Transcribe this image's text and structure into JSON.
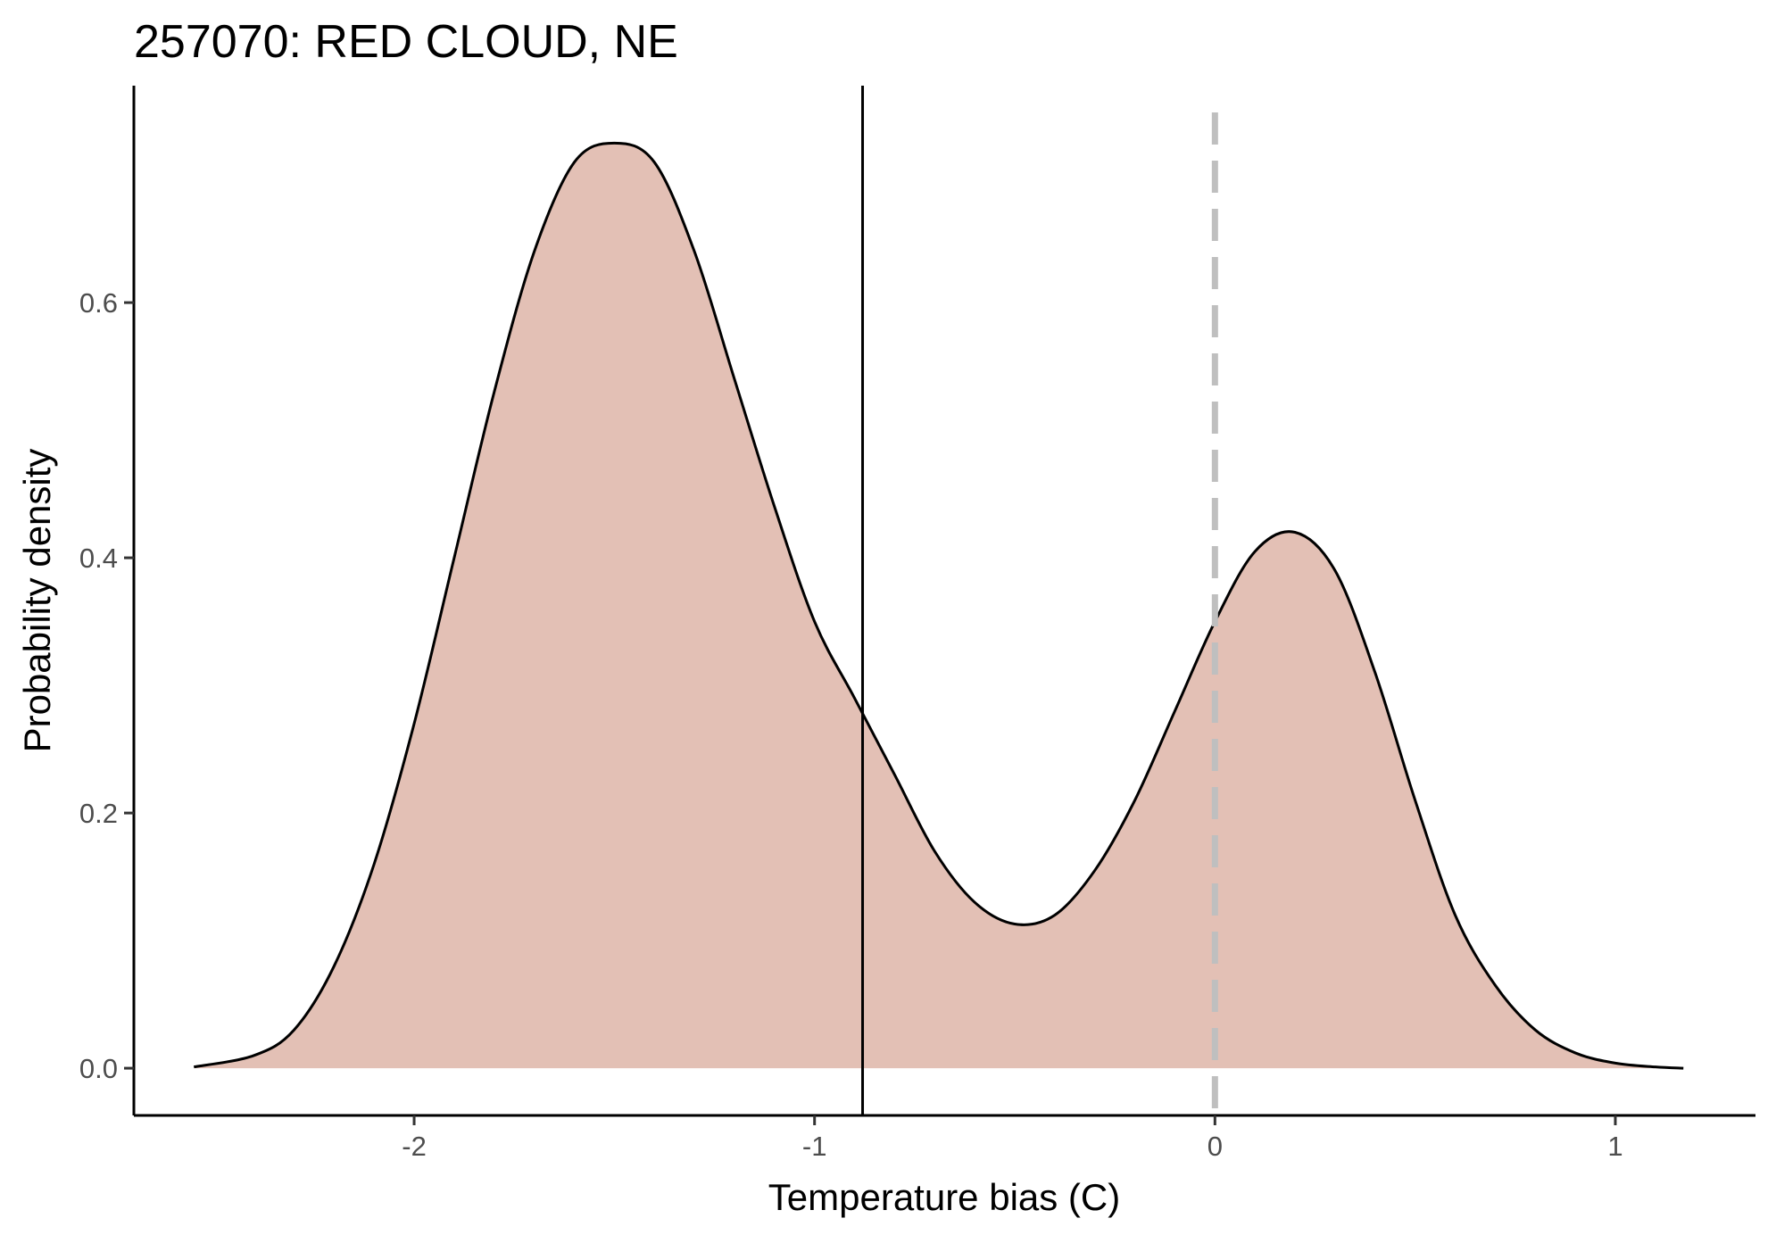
{
  "chart_data": {
    "type": "area",
    "title": "257070: RED CLOUD, NE",
    "xlabel": "Temperature bias (C)",
    "ylabel": "Probability density",
    "xlim": [
      -2.7,
      1.35
    ],
    "ylim": [
      -0.037,
      0.77
    ],
    "x_ticks": [
      -2,
      -1,
      0,
      1
    ],
    "x_tick_labels": [
      "-2",
      "-1",
      "0",
      "1"
    ],
    "y_ticks": [
      0.0,
      0.2,
      0.4,
      0.6
    ],
    "y_tick_labels": [
      "0.0",
      "0.2",
      "0.4",
      "0.6"
    ],
    "grid": false,
    "fill_color": "#e3c0b5",
    "line_color": "#000000",
    "reference_lines": [
      {
        "x": -0.88,
        "style": "solid",
        "color": "#000000"
      },
      {
        "x": 0.0,
        "style": "dashed",
        "color": "#bfbfbf"
      }
    ],
    "series": [
      {
        "x": [
          -2.55,
          -2.4,
          -2.3,
          -2.2,
          -2.1,
          -2.0,
          -1.9,
          -1.8,
          -1.7,
          -1.6,
          -1.5,
          -1.4,
          -1.3,
          -1.2,
          -1.1,
          -1.0,
          -0.9,
          -0.8,
          -0.7,
          -0.6,
          -0.5,
          -0.4,
          -0.3,
          -0.2,
          -0.1,
          0.0,
          0.1,
          0.2,
          0.3,
          0.4,
          0.5,
          0.6,
          0.7,
          0.8,
          0.9,
          1.0,
          1.1,
          1.17
        ],
        "y": [
          0.001,
          0.01,
          0.03,
          0.08,
          0.16,
          0.27,
          0.4,
          0.53,
          0.64,
          0.71,
          0.725,
          0.71,
          0.64,
          0.54,
          0.44,
          0.35,
          0.29,
          0.23,
          0.17,
          0.13,
          0.113,
          0.12,
          0.155,
          0.21,
          0.28,
          0.35,
          0.405,
          0.42,
          0.39,
          0.31,
          0.21,
          0.12,
          0.065,
          0.03,
          0.012,
          0.004,
          0.001,
          0.0
        ]
      }
    ]
  }
}
